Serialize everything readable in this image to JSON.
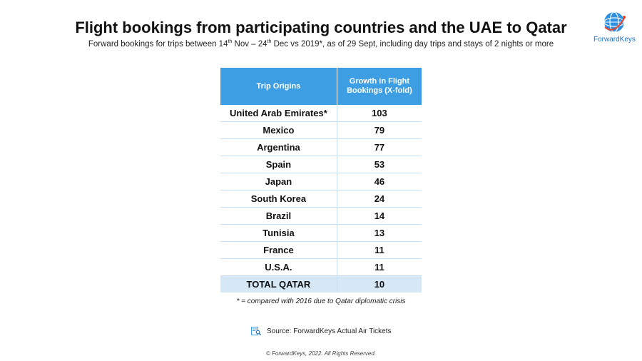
{
  "header": {
    "title": "Flight bookings from participating countries and the UAE to Qatar",
    "subtitle_parts": [
      "Forward bookings for trips between 14",
      "th",
      " Nov – 24",
      "th",
      " Dec vs 2019*, as of 29 Sept, including day trips and stays of 2 nights or more"
    ]
  },
  "logo": {
    "text": "ForwardKeys",
    "color": "#1a73c9"
  },
  "table": {
    "headers": [
      "Trip Origins",
      "Growth in Flight Bookings (X-fold)"
    ],
    "header_color": "#3d9ee3",
    "rows": [
      {
        "origin": "United Arab Emirates*",
        "growth": "103"
      },
      {
        "origin": "Mexico",
        "growth": "79"
      },
      {
        "origin": "Argentina",
        "growth": "77"
      },
      {
        "origin": "Spain",
        "growth": "53"
      },
      {
        "origin": "Japan",
        "growth": "46"
      },
      {
        "origin": "South Korea",
        "growth": "24"
      },
      {
        "origin": "Brazil",
        "growth": "14"
      },
      {
        "origin": "Tunisia",
        "growth": "13"
      },
      {
        "origin": "France",
        "growth": "11"
      },
      {
        "origin": "U.S.A.",
        "growth": "11"
      }
    ],
    "total": {
      "origin": "TOTAL QATAR",
      "growth": "10"
    },
    "total_color": "#d6e8f6"
  },
  "footnote": "* = compared with 2016 due to Qatar diplomatic crisis",
  "source": {
    "icon": "document-search-icon",
    "text": "Source: ForwardKeys Actual Air Tickets"
  },
  "copyright": "© ForwardKeys, 2022. All Rights Reserved."
}
